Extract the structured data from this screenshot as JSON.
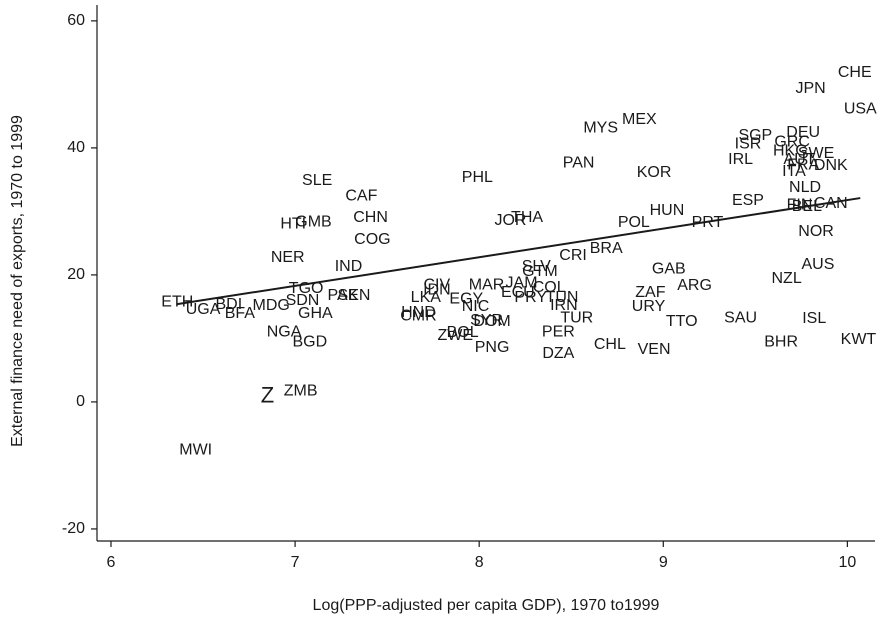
{
  "chart_data": {
    "type": "scatter",
    "xlabel": "Log(PPP-adjusted per capita GDP), 1970 to1999",
    "ylabel": "External finance need of exports, 1970 to 1999",
    "xlim": [
      5.924,
      10.15
    ],
    "ylim": [
      -21.9,
      62.5
    ],
    "xticks": [
      6,
      7,
      8,
      9,
      10
    ],
    "yticks": [
      -20,
      0,
      20,
      40,
      60
    ],
    "grid": false,
    "color": "#1a1a1a",
    "labels": [
      "CHE",
      "JPN",
      "USA",
      "MEX",
      "MYS",
      "SGP",
      "DEU",
      "ISR",
      "GRC",
      "HKG",
      "SWE",
      "IRL",
      "AUT",
      "ITA",
      "FRA",
      "DNK",
      "PAN",
      "KOR",
      "PHL",
      "SLE",
      "CAF",
      "ESP",
      "NLD",
      "FIN",
      "BEL",
      "CAN",
      "HUN",
      "POL",
      "PRT",
      "JOR",
      "THA",
      "HTI",
      "GMB",
      "CHN",
      "NOR",
      "COG",
      "BRA",
      "CRI",
      "NER",
      "IND",
      "SLV",
      "GTM",
      "GAB",
      "AUS",
      "NZL",
      "ARG",
      "ZAF",
      "MAR",
      "JAM",
      "ECU",
      "CIV",
      "COL",
      "PRY",
      "TUN",
      "IRN",
      "ETH",
      "UGA",
      "BDI",
      "BFA",
      "MDG",
      "SDN",
      "TGO",
      "SEN",
      "PAK",
      "GHA",
      "LKA",
      "IDN",
      "EGY",
      "NIC",
      "URY",
      "TTO",
      "SAU",
      "HND",
      "CMR",
      "BOL",
      "SYR",
      "DOM",
      "ZWE",
      "TUR",
      "ISL",
      "NGA",
      "PER",
      "KWT",
      "BGD",
      "CHL",
      "BHR",
      "PNG",
      "VEN",
      "DZA",
      "ZMB",
      "Z",
      "MWI"
    ],
    "x": [
      10.04,
      9.8,
      10.07,
      8.87,
      8.66,
      9.5,
      9.76,
      9.46,
      9.7,
      9.69,
      9.83,
      9.42,
      9.74,
      9.71,
      9.76,
      9.91,
      8.54,
      8.95,
      7.99,
      7.12,
      7.36,
      9.46,
      9.77,
      9.74,
      9.78,
      9.91,
      9.02,
      8.84,
      9.24,
      8.17,
      8.26,
      6.99,
      7.1,
      7.41,
      9.83,
      7.42,
      8.69,
      8.51,
      6.96,
      7.29,
      8.31,
      8.33,
      9.03,
      9.84,
      9.67,
      9.17,
      8.93,
      8.04,
      8.23,
      8.21,
      7.77,
      8.38,
      8.28,
      8.45,
      8.46,
      6.36,
      6.5,
      6.64,
      6.7,
      6.87,
      7.04,
      7.06,
      7.32,
      7.26,
      7.11,
      7.71,
      7.77,
      7.93,
      7.98,
      8.92,
      9.1,
      9.42,
      7.67,
      7.67,
      7.91,
      8.04,
      8.07,
      7.87,
      8.53,
      9.82,
      6.94,
      8.43,
      10.06,
      7.08,
      8.71,
      9.64,
      8.07,
      8.95,
      8.43,
      7.03,
      6.85,
      6.46
    ],
    "values": [
      51.8,
      49.3,
      46.1,
      44.4,
      43.1,
      41.9,
      42.4,
      40.6,
      40.9,
      39.5,
      39.1,
      38.1,
      38.1,
      36.2,
      37.3,
      37.2,
      37.6,
      36.1,
      35.3,
      34.8,
      32.4,
      31.7,
      33.7,
      31.0,
      30.7,
      31.2,
      30.1,
      28.2,
      28.2,
      28.5,
      29.0,
      28.0,
      28.3,
      29.0,
      26.8,
      25.5,
      24.1,
      23.0,
      22.7,
      21.3,
      21.3,
      20.5,
      20.9,
      21.6,
      19.4,
      18.3,
      17.2,
      18.4,
      18.7,
      17.2,
      18.4,
      18.0,
      16.4,
      16.4,
      15.1,
      15.7,
      14.5,
      15.3,
      13.9,
      15.1,
      15.9,
      17.8,
      16.7,
      16.7,
      13.9,
      16.4,
      17.6,
      16.2,
      15.0,
      15.0,
      12.6,
      13.2,
      14.0,
      13.5,
      10.9,
      12.8,
      12.6,
      10.4,
      13.2,
      13.1,
      11.0,
      11.0,
      9.8,
      9.4,
      9.0,
      9.4,
      8.5,
      8.2,
      7.6,
      1.7,
      0.8,
      -7.6
    ],
    "fit_line": {
      "x": [
        6.36,
        10.07
      ],
      "values": [
        15.4,
        32.1
      ]
    }
  }
}
